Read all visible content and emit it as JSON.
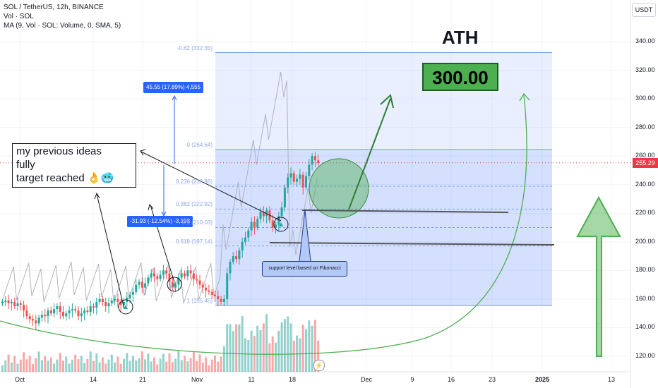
{
  "legend": {
    "title": "SOL / TetherUS, 12h, BINANCE",
    "vol": "Vol · SOL",
    "ma": "MA (9, Vol · SOL: Volume, 0, SMA, 5)"
  },
  "currency_label": "USDT",
  "current_price": "255.29",
  "annotations": {
    "previous_ideas": [
      "my previous ideas",
      "fully",
      "target reached 👌🥶"
    ],
    "ath": "ATH",
    "target": "300.00",
    "support": "support level based on Fibonacci",
    "measure_up": "45.55 (17.89%) 4,555",
    "measure_down": "-31.93 (-12.54%) -3,193",
    "alert_icon": "⚡"
  },
  "fib_levels": [
    {
      "label": "-0.62 (332.35)",
      "price": 332.35
    },
    {
      "label": "0 (264.64)",
      "price": 264.64
    },
    {
      "label": "0.236 (238.86)",
      "price": 238.86
    },
    {
      "label": "0.382 (222.92)",
      "price": 222.92
    },
    {
      "label": "0.5 (210.03)",
      "price": 210.03
    },
    {
      "label": "0.618 (197.14)",
      "price": 197.14
    },
    {
      "label": "1 (155.45)",
      "price": 155.45
    }
  ],
  "colors": {
    "up": "#26a69a",
    "down": "#ef5350",
    "fib_fill": "#2962ff",
    "arrow_green": "#2e7d32",
    "curve_green": "#4caf50"
  },
  "chart_data": {
    "type": "candlestick",
    "symbol": "SOL / TetherUS",
    "interval": "12h",
    "exchange": "BINANCE",
    "y_ticks": [
      "340.00",
      "320.00",
      "300.00",
      "280.00",
      "260.00",
      "240.00",
      "220.00",
      "200.00",
      "180.00",
      "160.00",
      "140.00",
      "120.00"
    ],
    "y_values": [
      340,
      320,
      300,
      280,
      260,
      240,
      220,
      200,
      180,
      160,
      140,
      120
    ],
    "ylim": [
      113,
      352
    ],
    "x_ticks": [
      {
        "label": "Oct",
        "bold": false
      },
      {
        "label": "14",
        "bold": false
      },
      {
        "label": "21",
        "bold": false
      },
      {
        "label": "Nov",
        "bold": false
      },
      {
        "label": "11",
        "bold": false
      },
      {
        "label": "18",
        "bold": false
      },
      {
        "label": "Dec",
        "bold": false
      },
      {
        "label": "9",
        "bold": false
      },
      {
        "label": "16",
        "bold": false
      },
      {
        "label": "23",
        "bold": false
      },
      {
        "label": "2025",
        "bold": true
      },
      {
        "label": "13",
        "bold": false
      }
    ],
    "closes": [
      158,
      159,
      157,
      158,
      155,
      157,
      156,
      152,
      148,
      146,
      145,
      143,
      147,
      149,
      148,
      152,
      150,
      153,
      155,
      151,
      148,
      150,
      152,
      153,
      152,
      148,
      150,
      152,
      151,
      155,
      154,
      158,
      160,
      158,
      155,
      157,
      159,
      160,
      158,
      156,
      158,
      161,
      163,
      165,
      170,
      172,
      168,
      171,
      175,
      178,
      176,
      174,
      177,
      180,
      178,
      172,
      168,
      170,
      175,
      178,
      176,
      180,
      178,
      174,
      173,
      170,
      168,
      166,
      165,
      163,
      162,
      160,
      158,
      160,
      178,
      186,
      190,
      188,
      194,
      200,
      203,
      208,
      214,
      210,
      216,
      221,
      218,
      222,
      215,
      210,
      212,
      218,
      224,
      238,
      245,
      248,
      242,
      244,
      247,
      238,
      246,
      254,
      260,
      257,
      255
    ]
  }
}
